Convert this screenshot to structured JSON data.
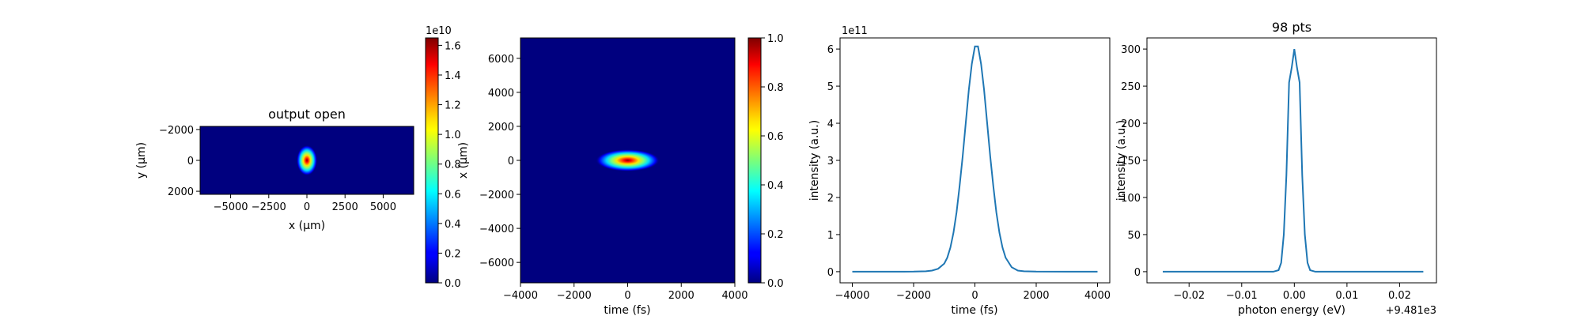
{
  "colors": {
    "line": "#1f77b4",
    "axes": "#000000",
    "background": "#ffffff",
    "colormap": "jet"
  },
  "chart_data": [
    {
      "type": "heatmap",
      "title": "output open",
      "xlabel": "x (μm)",
      "ylabel": "y (μm)",
      "xlim": [
        -7000,
        7000
      ],
      "ylim": [
        2200,
        -2200
      ],
      "xticks": [
        -5000,
        -2500,
        0,
        2500,
        5000
      ],
      "xtick_labels": [
        "−5000",
        "−2500",
        "0",
        "2500",
        "5000"
      ],
      "yticks": [
        -2000,
        0,
        2000
      ],
      "ytick_labels": [
        "−2000",
        "0",
        "2000"
      ],
      "beam": {
        "center_x": 0,
        "center_y": 0,
        "sigma_x": 260,
        "sigma_y": 380
      },
      "colorbar": {
        "min": 0,
        "max": 1.65,
        "ticks": [
          0,
          0.2,
          0.4,
          0.6,
          0.8,
          1.0,
          1.2,
          1.4,
          1.6
        ],
        "tick_labels": [
          "0.0",
          "0.2",
          "0.4",
          "0.6",
          "0.8",
          "1.0",
          "1.2",
          "1.4",
          "1.6"
        ],
        "offset_text": "1e10"
      }
    },
    {
      "type": "heatmap",
      "title": "",
      "xlabel": "time (fs)",
      "ylabel": "x (μm)",
      "xlim": [
        -4000,
        4000
      ],
      "ylim": [
        -7200,
        7200
      ],
      "xticks": [
        -4000,
        -2000,
        0,
        2000,
        4000
      ],
      "xtick_labels": [
        "−4000",
        "−2000",
        "0",
        "2000",
        "4000"
      ],
      "yticks": [
        -6000,
        -4000,
        -2000,
        0,
        2000,
        4000,
        6000
      ],
      "ytick_labels": [
        "−6000",
        "−4000",
        "−2000",
        "0",
        "2000",
        "4000",
        "6000"
      ],
      "beam": {
        "center_x": 0,
        "center_y": 0,
        "sigma_x": 460,
        "sigma_y": 250
      },
      "colorbar": {
        "min": 0,
        "max": 1.0,
        "ticks": [
          0,
          0.2,
          0.4,
          0.6,
          0.8,
          1.0
        ],
        "tick_labels": [
          "0.0",
          "0.2",
          "0.4",
          "0.6",
          "0.8",
          "1.0"
        ],
        "offset_text": ""
      }
    },
    {
      "type": "line",
      "title": "",
      "xlabel": "time (fs)",
      "ylabel": "intensity (a.u.)",
      "xlim": [
        -4400,
        4400
      ],
      "ylim": [
        -0.3,
        6.3
      ],
      "xticks": [
        -4000,
        -2000,
        0,
        2000,
        4000
      ],
      "xtick_labels": [
        "−4000",
        "−2000",
        "0",
        "2000",
        "4000"
      ],
      "yticks": [
        0,
        1,
        2,
        3,
        4,
        5,
        6
      ],
      "ytick_labels": [
        "0",
        "1",
        "2",
        "3",
        "4",
        "5",
        "6"
      ],
      "offset_text": "1e11",
      "x": [
        -4000,
        -3000,
        -2000,
        -1600,
        -1400,
        -1200,
        -1000,
        -900,
        -800,
        -700,
        -600,
        -500,
        -400,
        -300,
        -200,
        -100,
        0,
        100,
        200,
        300,
        400,
        500,
        600,
        700,
        800,
        900,
        1000,
        1200,
        1400,
        1600,
        2000,
        3000,
        4000
      ],
      "y": [
        0,
        0,
        0.002,
        0.01,
        0.03,
        0.08,
        0.22,
        0.38,
        0.65,
        1.05,
        1.6,
        2.3,
        3.1,
        4.0,
        4.9,
        5.6,
        6.07,
        6.07,
        5.6,
        4.9,
        4.0,
        3.1,
        2.3,
        1.6,
        1.05,
        0.65,
        0.38,
        0.12,
        0.03,
        0.01,
        0.002,
        0,
        0
      ]
    },
    {
      "type": "line",
      "title": "98 pts",
      "xlabel": "photon energy (eV)",
      "ylabel": "intensity (a.u.)",
      "xlim": [
        -0.028,
        0.027
      ],
      "ylim": [
        -15,
        315
      ],
      "xticks": [
        -0.02,
        -0.01,
        0.0,
        0.01,
        0.02
      ],
      "xtick_labels": [
        "−0.02",
        "−0.01",
        "0.00",
        "0.01",
        "0.02"
      ],
      "yticks": [
        0,
        50,
        100,
        150,
        200,
        250,
        300
      ],
      "ytick_labels": [
        "0",
        "50",
        "100",
        "150",
        "200",
        "250",
        "300"
      ],
      "offset_text": "+9.481e3",
      "x": [
        -0.025,
        -0.004,
        -0.003,
        -0.0025,
        -0.002,
        -0.0015,
        -0.001,
        -0.0005,
        0.0,
        0.0005,
        0.001,
        0.0015,
        0.002,
        0.0025,
        0.003,
        0.004,
        0.0245
      ],
      "y": [
        0,
        0,
        2,
        12,
        50,
        130,
        255,
        275,
        300,
        275,
        255,
        130,
        50,
        12,
        2,
        0,
        0
      ]
    }
  ]
}
